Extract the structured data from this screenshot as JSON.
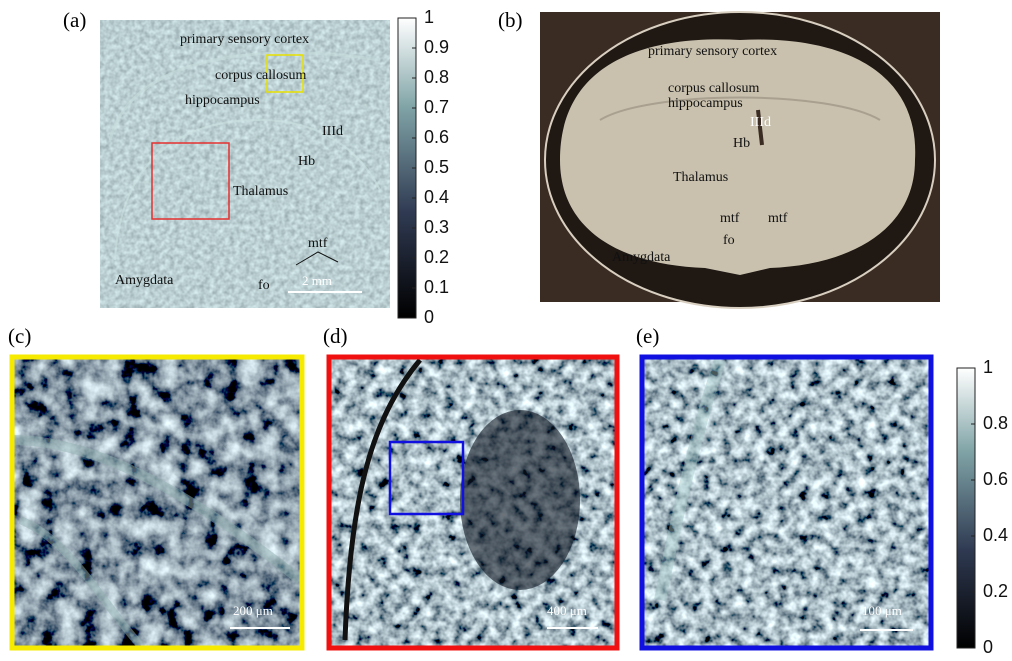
{
  "panels": {
    "a": {
      "label": "(a)",
      "annotations": [
        "primary sensory cortex",
        "corpus callosum",
        "hippocampus",
        "IIId",
        "Hb",
        "Thalamus",
        "mtf",
        "Amygdata",
        "fo"
      ],
      "scale_bar": "2 mm"
    },
    "b": {
      "label": "(b)",
      "annotations": [
        "primary sensory cortex",
        "corpus callosum",
        "hippocampus",
        "IIId",
        "Hb",
        "Thalamus",
        "mtf",
        "mtf",
        "fo",
        "Amygdata"
      ]
    },
    "c": {
      "label": "(c)",
      "scale_bar": "200 μm"
    },
    "d": {
      "label": "(d)",
      "scale_bar": "400 μm"
    },
    "e": {
      "label": "(e)",
      "scale_bar": "100 μm"
    }
  },
  "colorbars": [
    {
      "lim": [
        0,
        1
      ],
      "ticks": [
        0,
        0.1,
        0.2,
        0.3,
        0.4,
        0.5,
        0.6,
        0.7,
        0.8,
        0.9,
        1
      ]
    },
    {
      "lim": [
        0,
        1
      ],
      "ticks": [
        0,
        0.2,
        0.4,
        0.6,
        0.8,
        1
      ]
    }
  ]
}
